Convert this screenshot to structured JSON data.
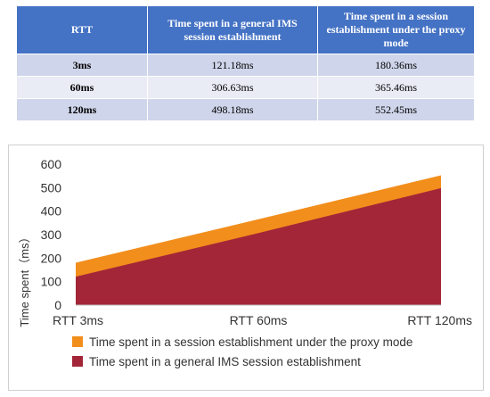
{
  "table": {
    "headers": [
      "RTT",
      "Time spent in a general IMS session establishment",
      "Time spent in a session establishment under the proxy mode"
    ],
    "rows": [
      {
        "rtt": "3ms",
        "general": "121.18ms",
        "proxy": "180.36ms"
      },
      {
        "rtt": "60ms",
        "general": "306.63ms",
        "proxy": "365.46ms"
      },
      {
        "rtt": "120ms",
        "general": "498.18ms",
        "proxy": "552.45ms"
      }
    ]
  },
  "chart_data": {
    "type": "area",
    "categories": [
      "RTT 3ms",
      "RTT 60ms",
      "RTT 120ms"
    ],
    "x": [
      3,
      60,
      120
    ],
    "series": [
      {
        "name": "Time spent in a session establishment under the proxy mode",
        "values": [
          180.36,
          365.46,
          552.45
        ],
        "color": "#f28e1c"
      },
      {
        "name": "Time spent in a general IMS session establishment",
        "values": [
          121.18,
          306.63,
          498.18
        ],
        "color": "#a32638"
      }
    ],
    "ylabel": "Time spent（ms）",
    "ylim": [
      0,
      600
    ],
    "yticks": [
      0,
      100,
      200,
      300,
      400,
      500,
      600
    ],
    "legend_position": "bottom",
    "grid": false
  }
}
